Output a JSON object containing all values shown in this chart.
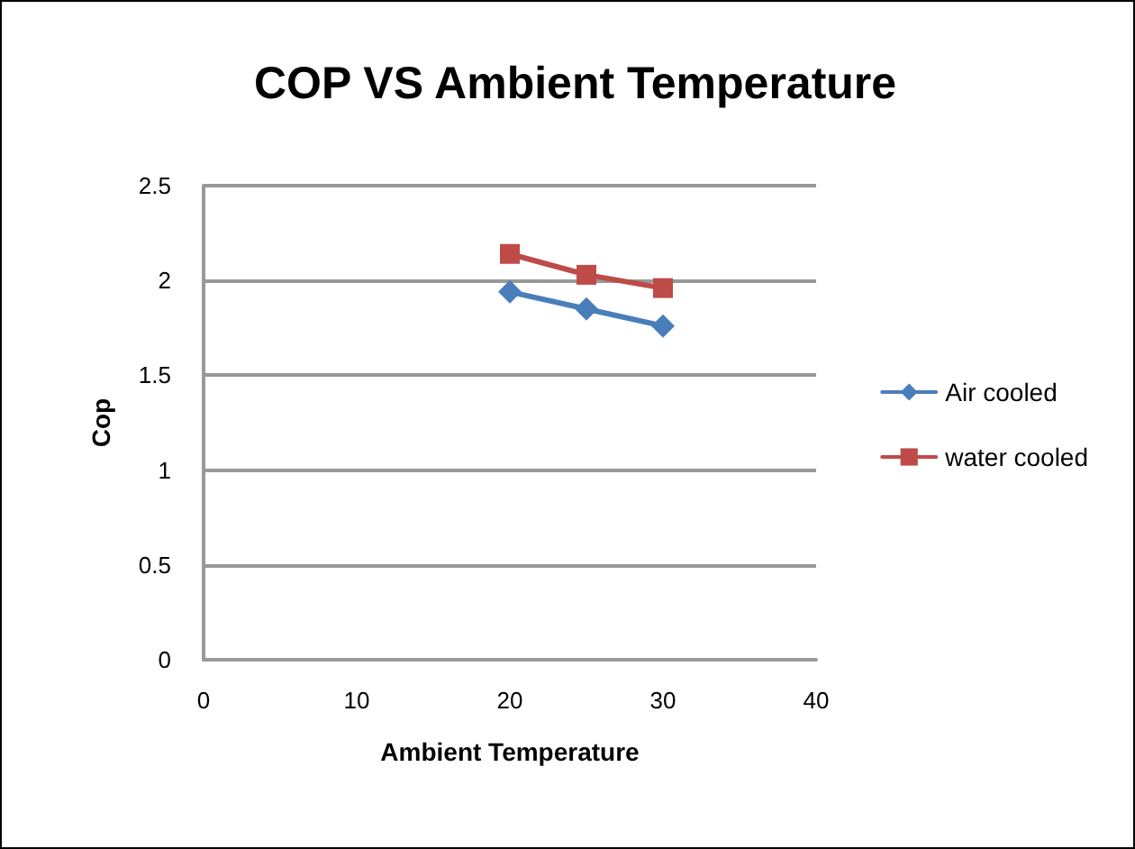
{
  "chart_data": {
    "type": "line",
    "title": "COP VS Ambient Temperature",
    "xlabel": "Ambient Temperature",
    "ylabel": "Cop",
    "x": [
      20,
      25,
      30
    ],
    "series": [
      {
        "name": "Air cooled",
        "color": "#4a7ebb",
        "marker": "diamond",
        "values": [
          1.94,
          1.85,
          1.76
        ]
      },
      {
        "name": "water cooled",
        "color": "#be4b48",
        "marker": "square",
        "values": [
          2.14,
          2.03,
          1.96
        ]
      }
    ],
    "xlim": [
      0,
      40
    ],
    "xticks": [
      0,
      10,
      20,
      30,
      40
    ],
    "ylim": [
      0,
      2.5
    ],
    "yticks": [
      0,
      0.5,
      1,
      1.5,
      2,
      2.5
    ],
    "grid": "y",
    "legend": "right"
  }
}
